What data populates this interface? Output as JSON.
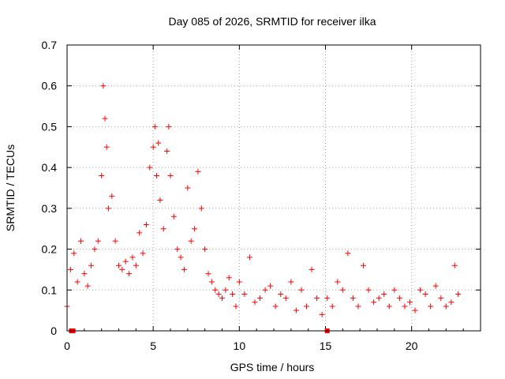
{
  "chart_data": {
    "type": "scatter",
    "title": "Day 085 of 2026, SRMTID for receiver ilka",
    "xlabel": "GPS time / hours",
    "ylabel": "SRMTID / TECUs",
    "xlim": [
      0,
      24
    ],
    "ylim": [
      0,
      0.7
    ],
    "xticks": [
      0,
      5,
      10,
      15,
      20
    ],
    "yticks": [
      0,
      0.1,
      0.2,
      0.3,
      0.4,
      0.5,
      0.6,
      0.7
    ],
    "xtick_labels": [
      "0",
      "5",
      "10",
      "15",
      "20"
    ],
    "ytick_labels": [
      "0",
      "0.1",
      "0.2",
      "0.3",
      "0.4",
      "0.5",
      "0.6",
      "0.7"
    ],
    "grid": true,
    "marker": "+",
    "color": "#ff0000",
    "series": [
      {
        "name": "SRMTID",
        "x": [
          0.0,
          0.2,
          0.4,
          0.6,
          0.8,
          1.0,
          1.2,
          1.4,
          1.6,
          1.8,
          2.0,
          2.1,
          2.2,
          2.3,
          2.4,
          2.6,
          2.8,
          3.0,
          3.2,
          3.4,
          3.6,
          3.8,
          4.0,
          4.2,
          4.4,
          4.6,
          4.8,
          5.0,
          5.1,
          5.2,
          5.3,
          5.4,
          5.6,
          5.8,
          5.9,
          6.0,
          6.2,
          6.4,
          6.6,
          6.8,
          7.0,
          7.2,
          7.4,
          7.6,
          7.8,
          8.0,
          8.2,
          8.4,
          8.6,
          8.8,
          9.0,
          9.2,
          9.4,
          9.6,
          9.8,
          10.0,
          10.3,
          10.6,
          10.9,
          11.2,
          11.5,
          11.8,
          12.1,
          12.4,
          12.7,
          13.0,
          13.3,
          13.6,
          13.9,
          14.2,
          14.5,
          14.8,
          15.1,
          15.4,
          15.7,
          16.0,
          16.3,
          16.6,
          16.9,
          17.2,
          17.5,
          17.8,
          18.1,
          18.4,
          18.7,
          19.0,
          19.3,
          19.6,
          19.9,
          20.2,
          20.5,
          20.8,
          21.1,
          21.4,
          21.7,
          22.0,
          22.3,
          22.5,
          22.7
        ],
        "y": [
          0.06,
          0.15,
          0.19,
          0.12,
          0.22,
          0.14,
          0.11,
          0.16,
          0.2,
          0.22,
          0.38,
          0.6,
          0.52,
          0.45,
          0.3,
          0.33,
          0.22,
          0.16,
          0.15,
          0.17,
          0.14,
          0.18,
          0.16,
          0.24,
          0.19,
          0.26,
          0.4,
          0.45,
          0.5,
          0.38,
          0.46,
          0.32,
          0.25,
          0.44,
          0.5,
          0.38,
          0.28,
          0.2,
          0.18,
          0.15,
          0.35,
          0.22,
          0.25,
          0.39,
          0.3,
          0.2,
          0.14,
          0.12,
          0.1,
          0.09,
          0.08,
          0.1,
          0.13,
          0.09,
          0.06,
          0.12,
          0.09,
          0.18,
          0.07,
          0.08,
          0.1,
          0.11,
          0.06,
          0.09,
          0.08,
          0.12,
          0.05,
          0.1,
          0.06,
          0.15,
          0.08,
          0.04,
          0.08,
          0.06,
          0.12,
          0.1,
          0.19,
          0.08,
          0.06,
          0.16,
          0.1,
          0.07,
          0.08,
          0.09,
          0.06,
          0.1,
          0.08,
          0.06,
          0.07,
          0.05,
          0.1,
          0.09,
          0.06,
          0.11,
          0.08,
          0.06,
          0.07,
          0.16,
          0.09
        ]
      }
    ],
    "outliers_at_zero": [
      0.25,
      0.35,
      15.1
    ]
  }
}
